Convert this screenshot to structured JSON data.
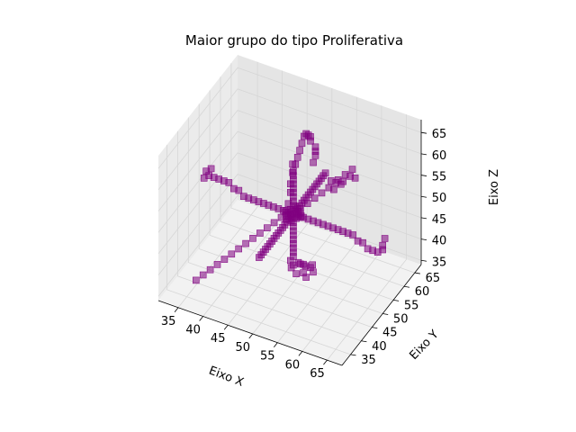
{
  "chart_data": {
    "type": "scatter",
    "projection": "3d",
    "title": "Maior grupo do tipo Proliferativa",
    "xlabel": "Eixo X",
    "ylabel": "Eixo Y",
    "zlabel": "Eixo Z",
    "xlim": [
      31,
      68
    ],
    "ylim": [
      31,
      68
    ],
    "zlim": [
      34,
      68
    ],
    "xticks": [
      "35",
      "40",
      "45",
      "50",
      "55",
      "60",
      "65"
    ],
    "yticks": [
      "35",
      "40",
      "45",
      "50",
      "55",
      "60",
      "65"
    ],
    "zticks": [
      "35",
      "40",
      "45",
      "50",
      "55",
      "60",
      "65"
    ],
    "marker": "square",
    "color": "#800080",
    "grid": true,
    "series": [
      {
        "points": [
          [
            49,
            50,
            50
          ],
          [
            50,
            50,
            50
          ],
          [
            51,
            50,
            50
          ],
          [
            48,
            50,
            50
          ],
          [
            50,
            49,
            50
          ],
          [
            50,
            51,
            50
          ],
          [
            50,
            50,
            49
          ],
          [
            50,
            50,
            51
          ],
          [
            49,
            49,
            50
          ],
          [
            51,
            51,
            50
          ],
          [
            49,
            51,
            50
          ],
          [
            51,
            49,
            50
          ],
          [
            50,
            50,
            52
          ],
          [
            50,
            50,
            53
          ],
          [
            50,
            50,
            54
          ],
          [
            50,
            50,
            55
          ],
          [
            50,
            50,
            56
          ],
          [
            50,
            50,
            57
          ],
          [
            50,
            50,
            58
          ],
          [
            50,
            50,
            59
          ],
          [
            50,
            50,
            60
          ],
          [
            50,
            51,
            61
          ],
          [
            50,
            52,
            62
          ],
          [
            50,
            53,
            63
          ],
          [
            50,
            54,
            64
          ],
          [
            50,
            55,
            65
          ],
          [
            50,
            56,
            65
          ],
          [
            50,
            57,
            64
          ],
          [
            50,
            58,
            63
          ],
          [
            50,
            58,
            62
          ],
          [
            51,
            58,
            61
          ],
          [
            51,
            58,
            60
          ],
          [
            51,
            58,
            59
          ],
          [
            51,
            57,
            58
          ],
          [
            49,
            50,
            52
          ],
          [
            49,
            51,
            54
          ],
          [
            49,
            51,
            56
          ],
          [
            49,
            52,
            58
          ],
          [
            49,
            52,
            60
          ],
          [
            52,
            50,
            50
          ],
          [
            53,
            50,
            50
          ],
          [
            54,
            50,
            50
          ],
          [
            55,
            50,
            50
          ],
          [
            56,
            50,
            50
          ],
          [
            57,
            50,
            50
          ],
          [
            58,
            50,
            50
          ],
          [
            59,
            50,
            50
          ],
          [
            60,
            50,
            50
          ],
          [
            61,
            50,
            50
          ],
          [
            62,
            50,
            50
          ],
          [
            63,
            50,
            49
          ],
          [
            64,
            50,
            49
          ],
          [
            65,
            50,
            48
          ],
          [
            66,
            50,
            48
          ],
          [
            67,
            50,
            48
          ],
          [
            68,
            50,
            49
          ],
          [
            68,
            50,
            50
          ],
          [
            68,
            51,
            51
          ],
          [
            47,
            50,
            50
          ],
          [
            46,
            50,
            50
          ],
          [
            45,
            50,
            50
          ],
          [
            44,
            50,
            50
          ],
          [
            43,
            50,
            50
          ],
          [
            42,
            50,
            50
          ],
          [
            41,
            50,
            50
          ],
          [
            40,
            50,
            50
          ],
          [
            39,
            50,
            51
          ],
          [
            38,
            50,
            51
          ],
          [
            37,
            50,
            52
          ],
          [
            36,
            50,
            52
          ],
          [
            35,
            50,
            52
          ],
          [
            34,
            50,
            52
          ],
          [
            33,
            50,
            52
          ],
          [
            32,
            50,
            51
          ],
          [
            32,
            51,
            52
          ],
          [
            33,
            51,
            53
          ],
          [
            50,
            48,
            50
          ],
          [
            50,
            47,
            50
          ],
          [
            50,
            46,
            50
          ],
          [
            50,
            45,
            50
          ],
          [
            50,
            44,
            50
          ],
          [
            50,
            43,
            50
          ],
          [
            50,
            42,
            50
          ],
          [
            50,
            41,
            50
          ],
          [
            50,
            40,
            50
          ],
          [
            50,
            39,
            50
          ],
          [
            50,
            38,
            50
          ],
          [
            50,
            37,
            50
          ],
          [
            50,
            36,
            50
          ],
          [
            50,
            35,
            50
          ],
          [
            50,
            34,
            50
          ],
          [
            50,
            52,
            50
          ],
          [
            50,
            53,
            50
          ],
          [
            50,
            54,
            50
          ],
          [
            50,
            55,
            50
          ],
          [
            50,
            56,
            50
          ],
          [
            50,
            57,
            50
          ],
          [
            50,
            58,
            50
          ],
          [
            50,
            59,
            50
          ],
          [
            50,
            60,
            50
          ],
          [
            50,
            61,
            50
          ],
          [
            50,
            62,
            50
          ],
          [
            50,
            63,
            50
          ],
          [
            50,
            64,
            50
          ],
          [
            50,
            65,
            50
          ],
          [
            51,
            51,
            51
          ],
          [
            52,
            52,
            52
          ],
          [
            53,
            53,
            53
          ],
          [
            54,
            54,
            54
          ],
          [
            55,
            55,
            55
          ],
          [
            56,
            56,
            56
          ],
          [
            57,
            57,
            56
          ],
          [
            58,
            58,
            57
          ],
          [
            59,
            58,
            57
          ],
          [
            58,
            59,
            58
          ],
          [
            57,
            58,
            57
          ],
          [
            56,
            57,
            56
          ],
          [
            55,
            56,
            56
          ],
          [
            57,
            56,
            56
          ],
          [
            56,
            55,
            55
          ],
          [
            50,
            50,
            48
          ],
          [
            50,
            50,
            47
          ],
          [
            50,
            50,
            46
          ],
          [
            50,
            50,
            45
          ],
          [
            50,
            50,
            44
          ],
          [
            50,
            50,
            43
          ],
          [
            50,
            50,
            42
          ],
          [
            50,
            50,
            41
          ],
          [
            50,
            50,
            40
          ],
          [
            51,
            50,
            39
          ],
          [
            52,
            50,
            39
          ],
          [
            50,
            50,
            38
          ],
          [
            51,
            51,
            38
          ],
          [
            52,
            51,
            38
          ],
          [
            53,
            51,
            38
          ],
          [
            52,
            50,
            37
          ],
          [
            51,
            49,
            37
          ],
          [
            53,
            49,
            37
          ],
          [
            50,
            49,
            38
          ],
          [
            49,
            51,
            38
          ],
          [
            54,
            50,
            38
          ],
          [
            53,
            52,
            38
          ],
          [
            49,
            49,
            49
          ],
          [
            48,
            49,
            49
          ],
          [
            47,
            48,
            48
          ],
          [
            46,
            47,
            47
          ],
          [
            45,
            46,
            46
          ],
          [
            44,
            45,
            45
          ],
          [
            43,
            44,
            44
          ],
          [
            42,
            43,
            43
          ],
          [
            41,
            42,
            42
          ],
          [
            40,
            41,
            41
          ],
          [
            39,
            40,
            40
          ],
          [
            38,
            39,
            39
          ],
          [
            37,
            38,
            38
          ],
          [
            36,
            37,
            37
          ],
          [
            51,
            49,
            51
          ],
          [
            51,
            51,
            49
          ],
          [
            49,
            51,
            49
          ],
          [
            49,
            49,
            51
          ],
          [
            50,
            51,
            51
          ],
          [
            50,
            49,
            49
          ],
          [
            51,
            50,
            51
          ],
          [
            49,
            50,
            49
          ],
          [
            52,
            49,
            51
          ],
          [
            48,
            51,
            49
          ]
        ]
      }
    ]
  }
}
